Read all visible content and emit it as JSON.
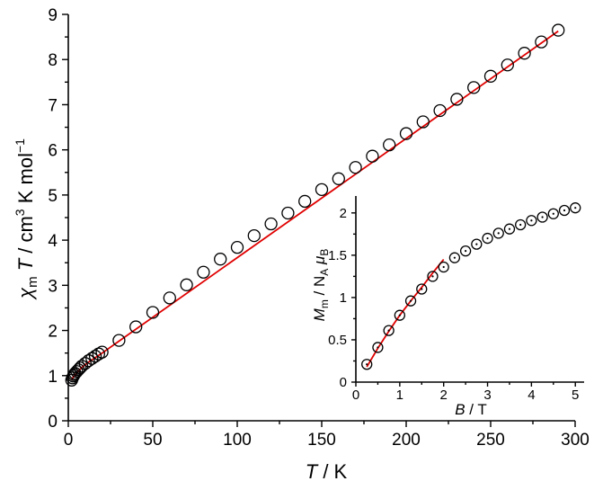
{
  "chart_data": [
    {
      "type": "scatter",
      "xlabel_sym": "T",
      "xlabel_unit": " / K",
      "ylabel_sym": "χ",
      "ylabel_sub": "m",
      "ylabel_sym2": " T",
      "ylabel_unit": " / cm",
      "ylabel_sup1": "3",
      "ylabel_unit2": " K mol",
      "ylabel_sup2": "−1",
      "xlim": [
        0,
        300
      ],
      "ylim": [
        0,
        9
      ],
      "xticks": [
        "0",
        "50",
        "100",
        "150",
        "200",
        "250",
        "300"
      ],
      "yticks": [
        "0",
        "1",
        "2",
        "3",
        "4",
        "5",
        "6",
        "7",
        "8",
        "9"
      ],
      "grid": false,
      "marker_color": "#000000",
      "fit_color": "#e00000",
      "series": [
        {
          "marker": "open-circle",
          "x": [
            2,
            2.5,
            3,
            3.5,
            4,
            5,
            6,
            7,
            8,
            10,
            12,
            14,
            16,
            18,
            20,
            30,
            40,
            50,
            60,
            70,
            80,
            90,
            100,
            110,
            120,
            130,
            140,
            150,
            160,
            170,
            180,
            190,
            200,
            210,
            220,
            230,
            240,
            250,
            260,
            270,
            280,
            290
          ],
          "y": [
            0.9,
            0.95,
            0.99,
            1.02,
            1.05,
            1.09,
            1.13,
            1.17,
            1.21,
            1.27,
            1.33,
            1.38,
            1.43,
            1.48,
            1.52,
            1.78,
            2.08,
            2.4,
            2.72,
            3.01,
            3.29,
            3.58,
            3.84,
            4.1,
            4.36,
            4.6,
            4.86,
            5.12,
            5.36,
            5.61,
            5.86,
            6.11,
            6.36,
            6.62,
            6.87,
            7.12,
            7.38,
            7.63,
            7.88,
            8.14,
            8.39,
            8.65
          ]
        }
      ],
      "fit": {
        "x": [
          2,
          2.5,
          3,
          4,
          5,
          6,
          7,
          8,
          10,
          12,
          14,
          16,
          18,
          20,
          290
        ],
        "y": [
          0.9,
          0.94,
          0.97,
          1.02,
          1.06,
          1.1,
          1.14,
          1.18,
          1.24,
          1.3,
          1.35,
          1.4,
          1.45,
          1.5,
          8.63
        ]
      }
    },
    {
      "type": "scatter",
      "role": "inset",
      "xlabel_sym": "B",
      "xlabel_unit": " / T",
      "ylabel_sym": "M",
      "ylabel_sub": "m",
      "ylabel_mid": " / N",
      "ylabel_sub2": "A",
      "ylabel_sym3": " μ",
      "ylabel_sub3": "B",
      "xlim": [
        0,
        5.2
      ],
      "ylim": [
        0,
        2.2
      ],
      "xticks": [
        "0",
        "1",
        "2",
        "3",
        "4",
        "5"
      ],
      "yticks": [
        "0",
        "0.5",
        "1",
        "1.5",
        "2"
      ],
      "grid": false,
      "series": [
        {
          "marker": "open-circle-dot",
          "x": [
            0.25,
            0.5,
            0.75,
            1.0,
            1.25,
            1.5,
            1.75,
            2.0,
            2.25,
            2.5,
            2.75,
            3.0,
            3.25,
            3.5,
            3.75,
            4.0,
            4.25,
            4.5,
            4.75,
            5.0
          ],
          "y": [
            0.21,
            0.41,
            0.61,
            0.79,
            0.96,
            1.1,
            1.25,
            1.36,
            1.47,
            1.55,
            1.63,
            1.7,
            1.76,
            1.81,
            1.86,
            1.91,
            1.95,
            1.99,
            2.03,
            2.06
          ]
        }
      ],
      "fit": {
        "x": [
          0.25,
          0.5,
          0.75,
          1.0,
          1.25,
          1.5,
          1.75,
          2.0
        ],
        "y": [
          0.18,
          0.4,
          0.6,
          0.79,
          0.96,
          1.12,
          1.29,
          1.45
        ]
      }
    }
  ]
}
